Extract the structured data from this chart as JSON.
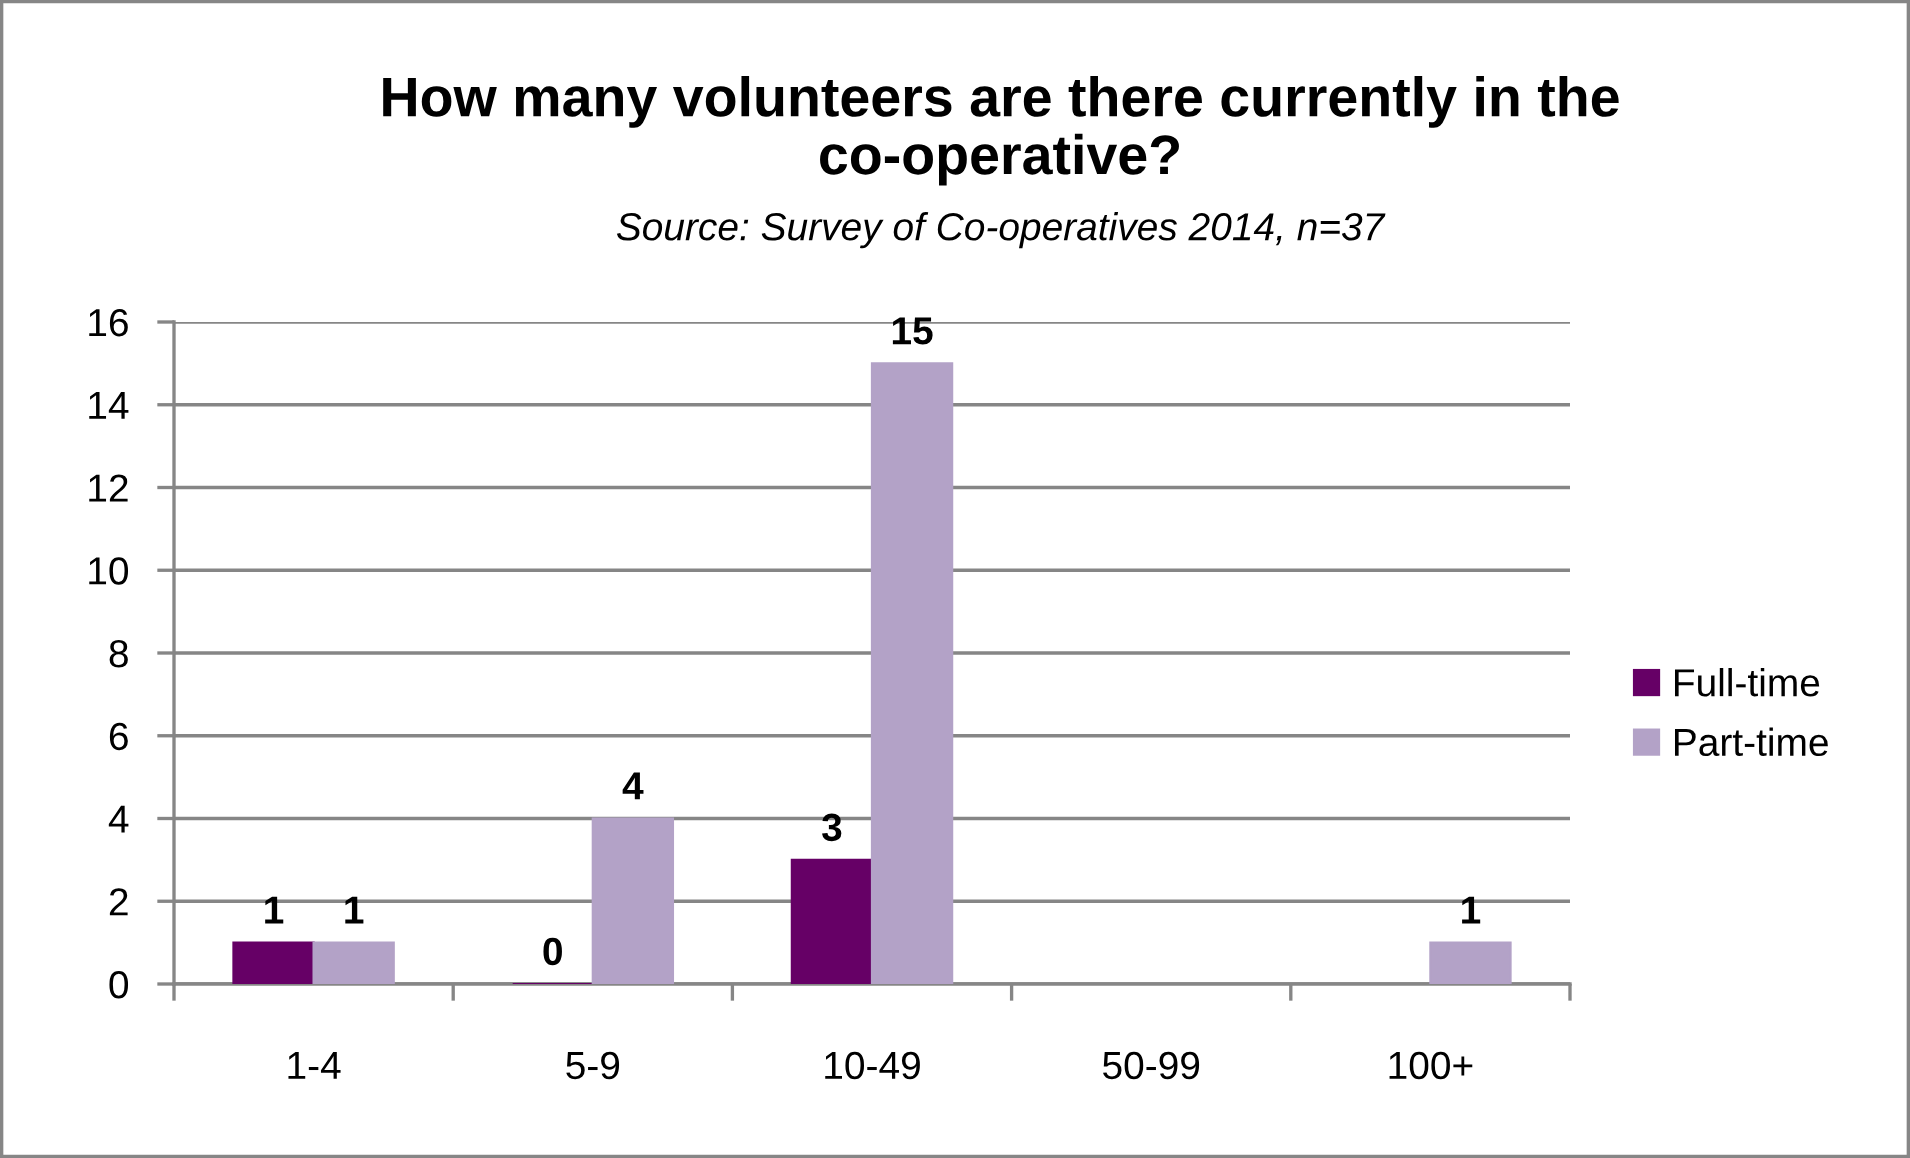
{
  "chart_data": {
    "type": "bar",
    "title": "How many volunteers are there currently in the co-operative?",
    "annotations": [
      "Source: Survey of Co-operatives 2014, n=37"
    ],
    "categories": [
      "1-4",
      "5-9",
      "10-49",
      "50-99",
      "100+"
    ],
    "series": [
      {
        "name": "Full-time",
        "color": "#660066",
        "values": [
          1,
          0,
          3,
          null,
          null
        ]
      },
      {
        "name": "Part-time",
        "color": "#b3a2c7",
        "values": [
          1,
          4,
          15,
          null,
          1
        ]
      }
    ],
    "ylim": [
      0,
      16
    ],
    "yticks": [
      0,
      2,
      4,
      6,
      8,
      10,
      12,
      14,
      16
    ],
    "grid": "y",
    "legend": "right",
    "data_labels": true
  }
}
